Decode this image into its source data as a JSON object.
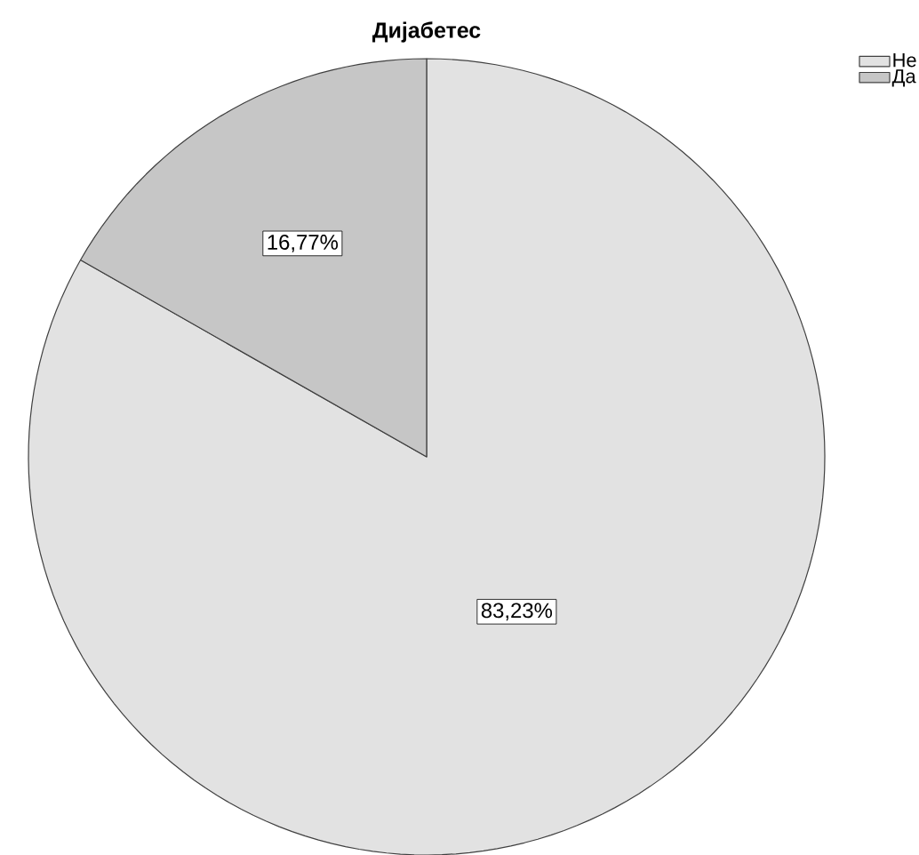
{
  "chart_data": {
    "type": "pie",
    "title": "Дијабетес",
    "categories": [
      "Не",
      "Да"
    ],
    "values": [
      83.23,
      16.77
    ],
    "value_labels": [
      "83,23%",
      "16,77%"
    ],
    "colors": [
      "#e2e2e2",
      "#c6c6c6"
    ],
    "legend": "top right"
  }
}
